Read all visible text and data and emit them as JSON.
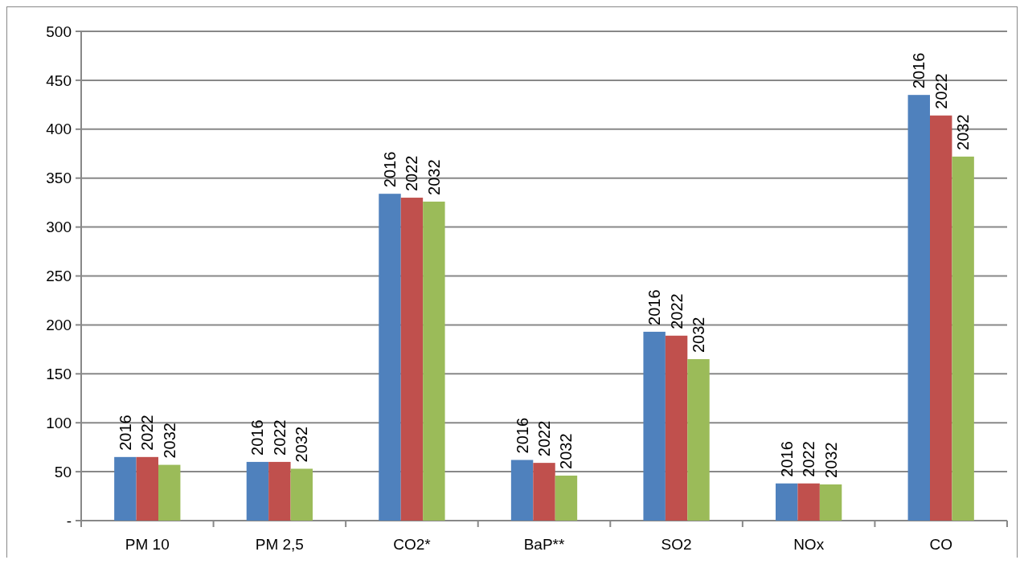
{
  "chart_data": {
    "type": "bar",
    "categories": [
      "PM 10",
      "PM 2,5",
      "CO2*",
      "BaP**",
      "SO2",
      "NOx",
      "CO"
    ],
    "series": [
      {
        "name": "2016",
        "color": "#4f81bd",
        "values": [
          65,
          60,
          334,
          62,
          193,
          38,
          435
        ]
      },
      {
        "name": "2022",
        "color": "#c0504d",
        "values": [
          65,
          60,
          330,
          59,
          189,
          38,
          414
        ]
      },
      {
        "name": "2032",
        "color": "#9bbb59",
        "values": [
          57,
          53,
          326,
          46,
          165,
          37,
          372
        ]
      }
    ],
    "ylim": [
      0,
      500
    ],
    "yticks": [
      {
        "value": 0,
        "label": "-"
      },
      50,
      100,
      150,
      200,
      250,
      300,
      350,
      400,
      450,
      500
    ],
    "grid": "y"
  }
}
